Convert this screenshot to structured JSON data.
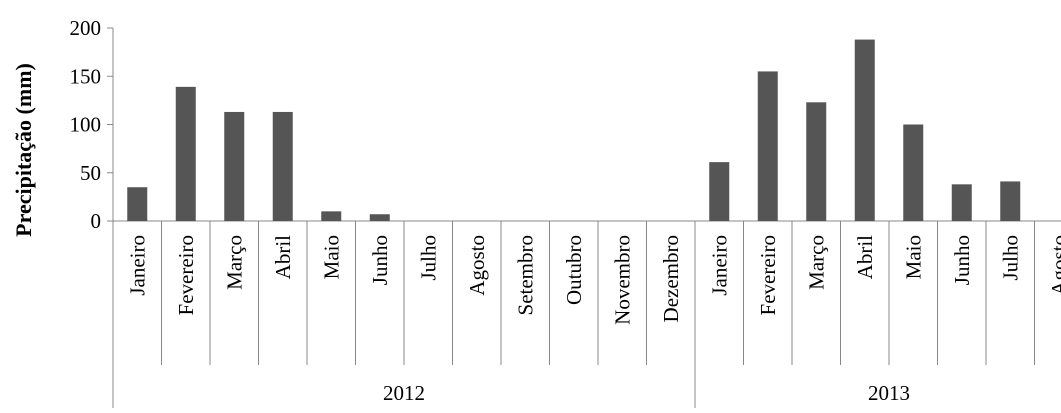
{
  "chart_data": {
    "type": "bar",
    "ylabel": "Precipitação (mm)",
    "ylim": [
      0,
      200
    ],
    "yticks": [
      0,
      50,
      100,
      150,
      200
    ],
    "grid": false,
    "legend": "none",
    "bar_color": "#555555",
    "axis_color": "#888888",
    "categories": [
      "Janeiro",
      "Fevereiro",
      "Março",
      "Abril",
      "Maio",
      "Junho",
      "Julho",
      "Agosto",
      "Setembro",
      "Outubro",
      "Novembro",
      "Dezembro",
      "Janeiro",
      "Fevereiro",
      "Março",
      "Abril",
      "Maio",
      "Junho",
      "Julho",
      "Agosto"
    ],
    "groups": [
      {
        "label": "2012",
        "count": 12
      },
      {
        "label": "2013",
        "count": 8
      }
    ],
    "values": [
      35,
      139,
      113,
      113,
      10,
      7,
      0,
      0,
      0,
      0,
      0,
      0,
      61,
      155,
      123,
      188,
      100,
      38,
      41,
      0
    ]
  }
}
